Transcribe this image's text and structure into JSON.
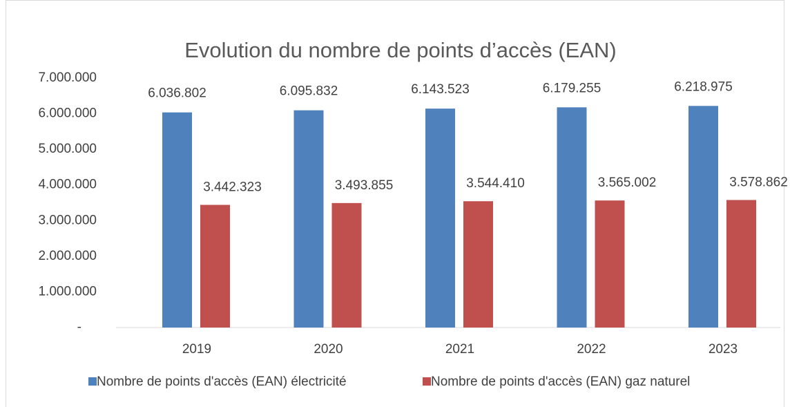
{
  "chart_data": {
    "type": "bar",
    "title": "Evolution du nombre de points d’accès (EAN)",
    "categories": [
      "2019",
      "2020",
      "2021",
      "2022",
      "2023"
    ],
    "series": [
      {
        "name": "Nombre de points d'accès (EAN) électricité",
        "color": "#4f81bd",
        "values": [
          6036802,
          6095832,
          6143523,
          6179255,
          6218975
        ],
        "value_labels": [
          "6.036.802",
          "6.095.832",
          "6.143.523",
          "6.179.255",
          "6.218.975"
        ]
      },
      {
        "name": "Nombre de points d'accès (EAN) gaz naturel",
        "color": "#c0504d",
        "values": [
          3442323,
          3493855,
          3544410,
          3565002,
          3578862
        ],
        "value_labels": [
          "3.442.323",
          "3.493.855",
          "3.544.410",
          "3.565.002",
          "3.578.862"
        ]
      }
    ],
    "ylim": [
      0,
      7000000
    ],
    "yticks": [
      {
        "value": 0,
        "label": "-"
      },
      {
        "value": 1000000,
        "label": "1.000.000"
      },
      {
        "value": 2000000,
        "label": "2.000.000"
      },
      {
        "value": 3000000,
        "label": "3.000.000"
      },
      {
        "value": 4000000,
        "label": "4.000.000"
      },
      {
        "value": 5000000,
        "label": "5.000.000"
      },
      {
        "value": 6000000,
        "label": "6.000.000"
      },
      {
        "value": 7000000,
        "label": "7.000.000"
      }
    ],
    "grid": false,
    "legend": "bottom"
  }
}
